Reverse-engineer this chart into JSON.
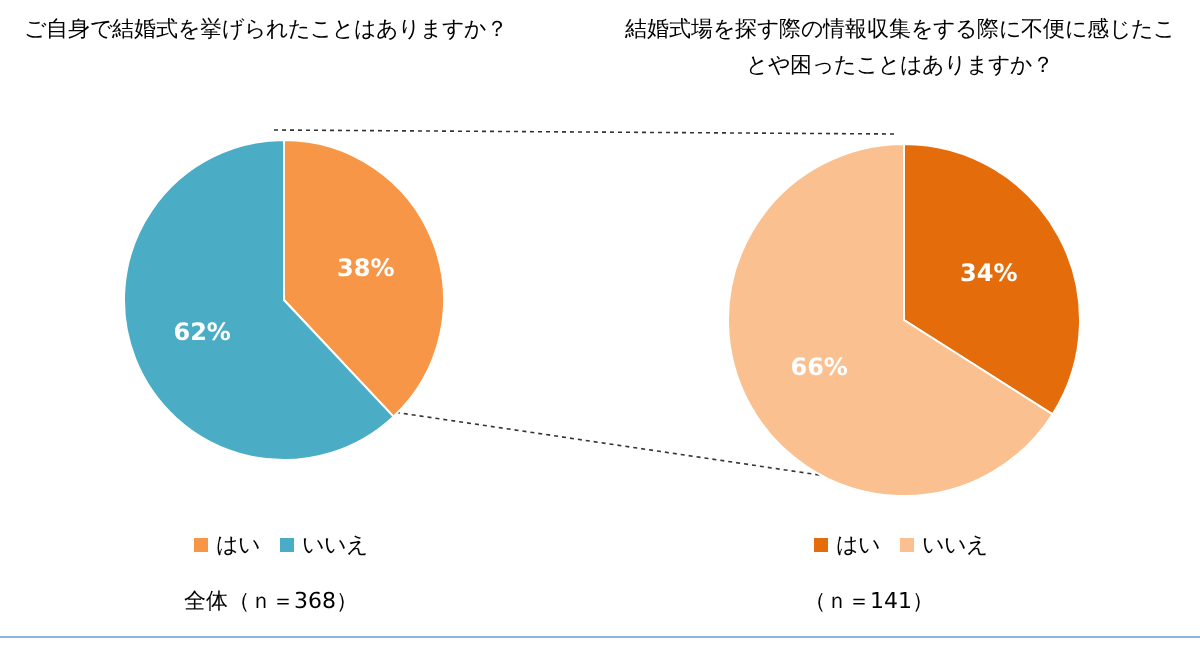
{
  "chart_data": [
    {
      "type": "pie",
      "title": "ご自身で結婚式を挙げられたことはありますか？",
      "categories": [
        "はい",
        "いいえ"
      ],
      "values": [
        38,
        62
      ],
      "colors": [
        "#f79646",
        "#4bacc6"
      ],
      "value_labels": [
        "38%",
        "62%"
      ],
      "legend": "bottom",
      "annotations": [
        "全体（ｎ＝368）"
      ]
    },
    {
      "type": "pie",
      "title": "結婚式場を探す際の情報収集をする際に不便に感じたことや困ったことはありますか？",
      "categories": [
        "はい",
        "いいえ"
      ],
      "values": [
        34,
        66
      ],
      "colors": [
        "#e46c0a",
        "#fac090"
      ],
      "value_labels": [
        "34%",
        "66%"
      ],
      "legend": "bottom",
      "annotations": [
        "（ｎ＝141）"
      ]
    }
  ]
}
